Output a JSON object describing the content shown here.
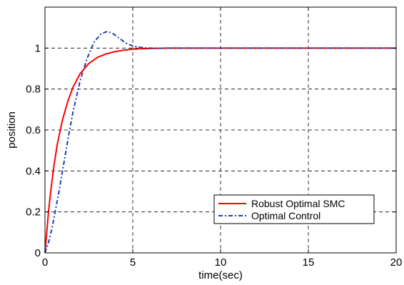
{
  "chart_data": {
    "type": "line",
    "title": "",
    "xlabel": "time(sec)",
    "ylabel": "position",
    "xlim": [
      0,
      20
    ],
    "ylim": [
      0,
      1.2
    ],
    "x_ticks": [
      0,
      5,
      10,
      15,
      20
    ],
    "x_tick_labels": [
      "0",
      "5",
      "10",
      "15",
      "20"
    ],
    "y_ticks": [
      0,
      0.2,
      0.4,
      0.6,
      0.8,
      1
    ],
    "y_tick_labels": [
      "0",
      "0.2",
      "0.4",
      "0.6",
      "0.8",
      "1"
    ],
    "grid": true,
    "legend_position": "lower-right",
    "series": [
      {
        "name": "Robust Optimal SMC",
        "color": "#ff0000",
        "style": "solid",
        "x": [
          0,
          0.1,
          0.2,
          0.3,
          0.5,
          0.7,
          1.0,
          1.3,
          1.6,
          2.0,
          2.5,
          3.0,
          3.5,
          4.0,
          4.5,
          5.0,
          5.5,
          6.0,
          7.0,
          8.0,
          10.0,
          12.0,
          15.0,
          20.0
        ],
        "y": [
          0,
          0.1,
          0.2,
          0.28,
          0.42,
          0.53,
          0.65,
          0.74,
          0.81,
          0.875,
          0.925,
          0.955,
          0.972,
          0.983,
          0.99,
          0.995,
          0.997,
          0.998,
          1.0,
          1.0,
          1.0,
          1.0,
          1.0,
          1.0
        ]
      },
      {
        "name": "Optimal Control",
        "color": "#1f3fb0",
        "style": "dashdot",
        "x": [
          0,
          0.2,
          0.4,
          0.6,
          0.8,
          1.0,
          1.3,
          1.6,
          2.0,
          2.4,
          2.8,
          3.2,
          3.5,
          3.8,
          4.2,
          4.6,
          5.0,
          5.5,
          6.0,
          6.5,
          7.0,
          8.0,
          10.0,
          12.0,
          15.0,
          20.0
        ],
        "y": [
          0,
          0.05,
          0.12,
          0.21,
          0.3,
          0.4,
          0.55,
          0.69,
          0.84,
          0.95,
          1.03,
          1.07,
          1.08,
          1.075,
          1.05,
          1.025,
          1.01,
          1.003,
          1.0,
          0.999,
          1.0,
          1.0,
          1.0,
          1.0,
          1.0,
          1.0
        ]
      }
    ]
  }
}
